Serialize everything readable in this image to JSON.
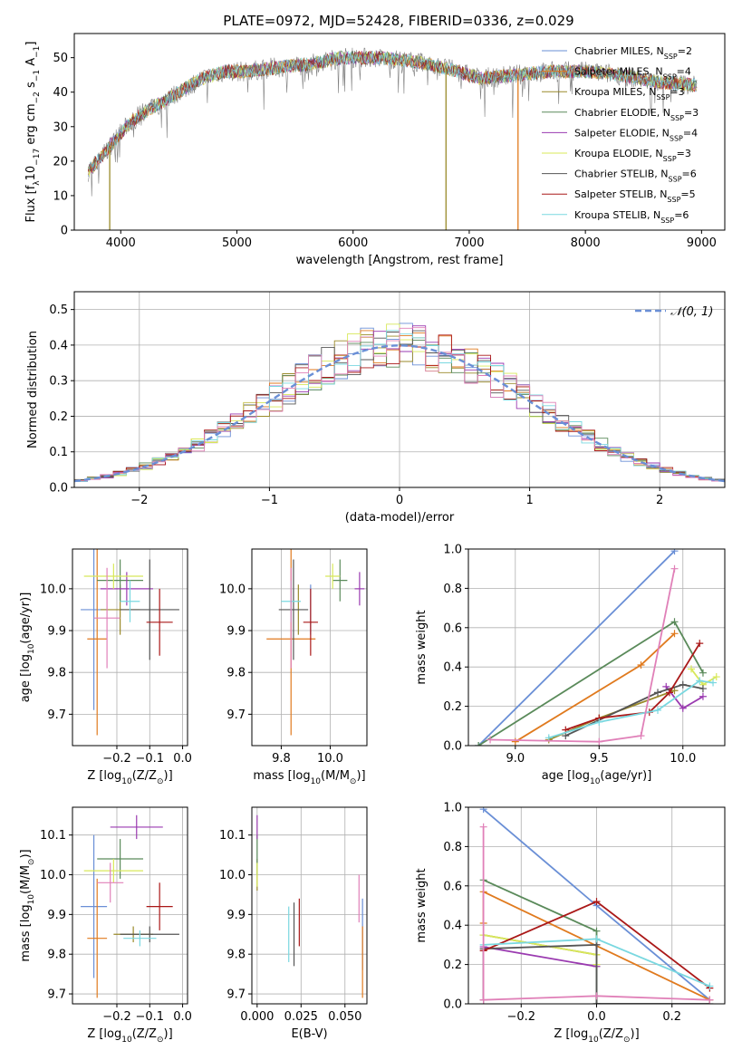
{
  "figure_title": "PLATE=0972, MJD=52428, FIBERID=0336, z=0.029",
  "colors": {
    "chab_miles": "#6a8fd6",
    "salp_miles": "#e07a1e",
    "krou_miles": "#9a8a2a",
    "chab_elodie": "#5a8a5a",
    "salp_elodie": "#9a3ab0",
    "krou_elodie": "#d8e85a",
    "chab_stelib": "#555555",
    "salp_stelib": "#aa1818",
    "krou_stelib": "#7ad8e0",
    "extra_pink": "#e080b8",
    "data": "#808080"
  },
  "legend": {
    "spectrum": [
      {
        "key": "chab_miles",
        "label": "Chabrier MILES, N",
        "sub": "SSP",
        "tail": "=2"
      },
      {
        "key": "salp_miles",
        "label": "Salpeter MILES, N",
        "sub": "SSP",
        "tail": "=4"
      },
      {
        "key": "krou_miles",
        "label": "Kroupa MILES, N",
        "sub": "SSP",
        "tail": "=3"
      },
      {
        "key": "chab_elodie",
        "label": "Chabrier ELODIE, N",
        "sub": "SSP",
        "tail": "=3"
      },
      {
        "key": "salp_elodie",
        "label": "Salpeter ELODIE, N",
        "sub": "SSP",
        "tail": "=4"
      },
      {
        "key": "krou_elodie",
        "label": "Kroupa ELODIE, N",
        "sub": "SSP",
        "tail": "=3"
      },
      {
        "key": "chab_stelib",
        "label": "Chabrier STELIB, N",
        "sub": "SSP",
        "tail": "=6"
      },
      {
        "key": "salp_stelib",
        "label": "Salpeter STELIB, N",
        "sub": "SSP",
        "tail": "=5"
      },
      {
        "key": "krou_stelib",
        "label": "Kroupa STELIB, N",
        "sub": "SSP",
        "tail": "=6"
      }
    ],
    "hist_normal": "𝒩(0, 1)"
  },
  "chart_data": [
    {
      "id": "spectrum",
      "type": "line",
      "xlabel": "wavelength [Angstrom, rest frame]",
      "ylabel_parts": [
        "Flux [f",
        "λ",
        "10",
        "−17",
        " erg cm",
        "−2",
        " s",
        "−1",
        " A",
        "−1",
        "]"
      ],
      "xlim": [
        3600,
        9200
      ],
      "ylim": [
        0,
        57
      ],
      "xticks": [
        4000,
        5000,
        6000,
        7000,
        8000,
        9000
      ],
      "yticks": [
        0,
        10,
        20,
        30,
        40,
        50
      ],
      "xrange_data": [
        3720,
        8960
      ],
      "continuum": [
        [
          3720,
          17
        ],
        [
          3850,
          22
        ],
        [
          3950,
          26
        ],
        [
          4050,
          30
        ],
        [
          4150,
          33
        ],
        [
          4300,
          36
        ],
        [
          4500,
          40
        ],
        [
          4700,
          44
        ],
        [
          4900,
          46
        ],
        [
          5100,
          46
        ],
        [
          5300,
          47
        ],
        [
          5600,
          48
        ],
        [
          5900,
          50
        ],
        [
          6200,
          50
        ],
        [
          6500,
          49
        ],
        [
          6800,
          47
        ],
        [
          7100,
          44
        ],
        [
          7400,
          45
        ],
        [
          7700,
          46
        ],
        [
          8000,
          46
        ],
        [
          8300,
          45
        ],
        [
          8600,
          43
        ],
        [
          8960,
          42
        ]
      ],
      "drops": [
        {
          "x": 3905,
          "key": "krou_miles"
        },
        {
          "x": 6800,
          "key": "krou_miles"
        },
        {
          "x": 7420,
          "key": "salp_miles"
        }
      ]
    },
    {
      "id": "residual_hist",
      "type": "step-histogram",
      "xlabel": "(data-model)/error",
      "ylabel": "Normed distribution",
      "xlim": [
        -2.5,
        2.5
      ],
      "ylim": [
        0,
        0.55
      ],
      "xticks": [
        -2,
        -1,
        0,
        1,
        2
      ],
      "xtick_labels": [
        "−2",
        "−1",
        "0",
        "1",
        "2"
      ],
      "yticks": [
        0,
        0.1,
        0.2,
        0.3,
        0.4,
        0.5
      ],
      "ytick_labels": [
        "0.0",
        "0.1",
        "0.2",
        "0.3",
        "0.4",
        "0.5"
      ],
      "bin_width": 0.1,
      "normal_sigma": 1
    },
    {
      "id": "z_age",
      "type": "errorbar",
      "xlabel_parts": [
        "Z [log",
        "10",
        "(Z/Z",
        "⊙",
        ")]"
      ],
      "ylabel_parts": [
        "age  [log",
        "10",
        "(age/yr)]"
      ],
      "xlim": [
        -0.335,
        0.015
      ],
      "ylim": [
        9.625,
        10.095
      ],
      "xticks": [
        -0.2,
        -0.1,
        0.0
      ],
      "xtick_labels": [
        "−0.2",
        "−0.1",
        "0.0"
      ],
      "yticks": [
        9.7,
        9.8,
        9.9,
        10.0
      ],
      "ytick_labels": [
        "9.7",
        "9.8",
        "9.9",
        "10.0"
      ],
      "points": [
        {
          "key": "chab_miles",
          "x": -0.27,
          "y": 9.95,
          "xerr": 0.04,
          "yerr": 0.24
        },
        {
          "key": "salp_miles",
          "x": -0.26,
          "y": 9.88,
          "xerr": 0.03,
          "yerr": 0.23
        },
        {
          "key": "krou_miles",
          "x": -0.19,
          "y": 9.95,
          "xerr": 0.06,
          "yerr": 0.06
        },
        {
          "key": "chab_elodie",
          "x": -0.19,
          "y": 10.02,
          "xerr": 0.07,
          "yerr": 0.05
        },
        {
          "key": "salp_elodie",
          "x": -0.17,
          "y": 10.0,
          "xerr": 0.08,
          "yerr": 0.04
        },
        {
          "key": "krou_elodie",
          "x": -0.21,
          "y": 10.03,
          "xerr": 0.09,
          "yerr": 0.03
        },
        {
          "key": "chab_stelib",
          "x": -0.1,
          "y": 9.95,
          "xerr": 0.09,
          "yerr": 0.12
        },
        {
          "key": "salp_stelib",
          "x": -0.07,
          "y": 9.92,
          "xerr": 0.04,
          "yerr": 0.08
        },
        {
          "key": "krou_stelib",
          "x": -0.16,
          "y": 9.97,
          "xerr": 0.03,
          "yerr": 0.05
        },
        {
          "key": "extra_pink",
          "x": -0.23,
          "y": 9.93,
          "xerr": 0.04,
          "yerr": 0.12
        }
      ]
    },
    {
      "id": "mass_age",
      "type": "errorbar",
      "xlabel_parts": [
        "mass [log",
        "10",
        "(M/M",
        "⊙",
        ")]"
      ],
      "xlim": [
        9.68,
        10.15
      ],
      "ylim": [
        9.625,
        10.095
      ],
      "xticks": [
        9.8,
        10.0
      ],
      "xtick_labels": [
        "9.8",
        "10.0"
      ],
      "yticks": [
        9.7,
        9.8,
        9.9,
        10.0
      ],
      "ytick_labels": [
        "9.7",
        "9.8",
        "9.9",
        "10.0"
      ],
      "points": [
        {
          "key": "chab_miles",
          "x": 9.92,
          "y": 9.95,
          "xerr": 0.0,
          "yerr": 0.06
        },
        {
          "key": "salp_miles",
          "x": 9.84,
          "y": 9.88,
          "xerr": 0.1,
          "yerr": 0.23
        },
        {
          "key": "krou_miles",
          "x": 9.87,
          "y": 9.95,
          "xerr": 0.0,
          "yerr": 0.06
        },
        {
          "key": "chab_elodie",
          "x": 10.04,
          "y": 10.02,
          "xerr": 0.03,
          "yerr": 0.05
        },
        {
          "key": "salp_elodie",
          "x": 10.12,
          "y": 10.0,
          "xerr": 0.02,
          "yerr": 0.04
        },
        {
          "key": "krou_elodie",
          "x": 10.01,
          "y": 10.03,
          "xerr": 0.03,
          "yerr": 0.03
        },
        {
          "key": "chab_stelib",
          "x": 9.85,
          "y": 9.95,
          "xerr": 0.06,
          "yerr": 0.12
        },
        {
          "key": "salp_stelib",
          "x": 9.92,
          "y": 9.92,
          "xerr": 0.03,
          "yerr": 0.08
        },
        {
          "key": "krou_stelib",
          "x": 9.84,
          "y": 9.97,
          "xerr": 0.04,
          "yerr": 0.05
        },
        {
          "key": "extra_pink",
          "x": 9.84,
          "y": 9.93,
          "xerr": 0.0,
          "yerr": 0.12
        }
      ]
    },
    {
      "id": "age_weight",
      "type": "line",
      "xlabel_parts": [
        "age  [log",
        "10",
        "(age/yr)]"
      ],
      "ylabel": "mass weight",
      "xlim": [
        8.72,
        10.25
      ],
      "ylim": [
        0,
        1.0
      ],
      "xticks": [
        9.0,
        9.5,
        10.0
      ],
      "xtick_labels": [
        "9.0",
        "9.5",
        "10.0"
      ],
      "yticks": [
        0,
        0.2,
        0.4,
        0.6,
        0.8,
        1.0
      ],
      "ytick_labels": [
        "0.0",
        "0.2",
        "0.4",
        "0.6",
        "0.8",
        "1.0"
      ],
      "series": [
        {
          "key": "chab_miles",
          "x": [
            8.78,
            9.95
          ],
          "y": [
            0.0,
            0.99
          ]
        },
        {
          "key": "salp_miles",
          "x": [
            9.0,
            9.75,
            9.95
          ],
          "y": [
            0.02,
            0.41,
            0.57
          ]
        },
        {
          "key": "krou_miles",
          "x": [
            9.2,
            9.5,
            9.95
          ],
          "y": [
            0.03,
            0.14,
            0.28
          ]
        },
        {
          "key": "chab_elodie",
          "x": [
            8.78,
            9.95,
            10.12
          ],
          "y": [
            0.0,
            0.63,
            0.37
          ]
        },
        {
          "key": "salp_elodie",
          "x": [
            9.9,
            10.0,
            10.12
          ],
          "y": [
            0.3,
            0.19,
            0.25
          ]
        },
        {
          "key": "krou_elodie",
          "x": [
            10.05,
            10.12,
            10.2
          ],
          "y": [
            0.39,
            0.31,
            0.35
          ]
        },
        {
          "key": "chab_stelib",
          "x": [
            9.3,
            9.85,
            10.0,
            10.12
          ],
          "y": [
            0.05,
            0.27,
            0.31,
            0.29
          ]
        },
        {
          "key": "salp_stelib",
          "x": [
            9.3,
            9.5,
            9.8,
            9.92,
            10.1
          ],
          "y": [
            0.08,
            0.14,
            0.17,
            0.27,
            0.52
          ]
        },
        {
          "key": "krou_stelib",
          "x": [
            9.2,
            9.5,
            9.85,
            10.1,
            10.18
          ],
          "y": [
            0.04,
            0.12,
            0.18,
            0.33,
            0.32
          ]
        },
        {
          "key": "extra_pink",
          "x": [
            8.85,
            9.5,
            9.75,
            9.95
          ],
          "y": [
            0.03,
            0.02,
            0.05,
            0.9
          ]
        }
      ]
    },
    {
      "id": "z_mass",
      "type": "errorbar",
      "xlabel_parts": [
        "Z [log",
        "10",
        "(Z/Z",
        "⊙",
        ")]"
      ],
      "ylabel_parts": [
        "mass [log",
        "10",
        "(M/M",
        "⊙",
        ")]"
      ],
      "xlim": [
        -0.335,
        0.015
      ],
      "ylim": [
        9.675,
        10.17
      ],
      "xticks": [
        -0.2,
        -0.1,
        0.0
      ],
      "xtick_labels": [
        "−0.2",
        "−0.1",
        "0.0"
      ],
      "yticks": [
        9.7,
        9.8,
        9.9,
        10.0,
        10.1
      ],
      "ytick_labels": [
        "9.7",
        "9.8",
        "9.9",
        "10.0",
        "10.1"
      ],
      "points": [
        {
          "key": "chab_miles",
          "x": -0.27,
          "y": 9.92,
          "xerr": 0.04,
          "yerr": 0.18
        },
        {
          "key": "salp_miles",
          "x": -0.26,
          "y": 9.84,
          "xerr": 0.03,
          "yerr": 0.15
        },
        {
          "key": "krou_miles",
          "x": -0.15,
          "y": 9.85,
          "xerr": 0.06,
          "yerr": 0.02
        },
        {
          "key": "chab_elodie",
          "x": -0.19,
          "y": 10.04,
          "xerr": 0.07,
          "yerr": 0.05
        },
        {
          "key": "salp_elodie",
          "x": -0.14,
          "y": 10.12,
          "xerr": 0.08,
          "yerr": 0.03
        },
        {
          "key": "krou_elodie",
          "x": -0.21,
          "y": 10.01,
          "xerr": 0.09,
          "yerr": 0.03
        },
        {
          "key": "chab_stelib",
          "x": -0.1,
          "y": 9.85,
          "xerr": 0.09,
          "yerr": 0.02
        },
        {
          "key": "salp_stelib",
          "x": -0.07,
          "y": 9.92,
          "xerr": 0.04,
          "yerr": 0.06
        },
        {
          "key": "krou_stelib",
          "x": -0.13,
          "y": 9.84,
          "xerr": 0.05,
          "yerr": 0.02
        },
        {
          "key": "extra_pink",
          "x": -0.22,
          "y": 9.98,
          "xerr": 0.04,
          "yerr": 0.05
        }
      ]
    },
    {
      "id": "ebv_mass",
      "type": "errorbar",
      "xlabel": "E(B-V)",
      "xlim": [
        -0.003,
        0.0625
      ],
      "ylim": [
        9.675,
        10.17
      ],
      "xticks": [
        0.0,
        0.025,
        0.05
      ],
      "xtick_labels": [
        "0.000",
        "0.025",
        "0.050"
      ],
      "yticks": [
        9.7,
        9.8,
        9.9,
        10.0,
        10.1
      ],
      "ytick_labels": [
        "9.7",
        "9.8",
        "9.9",
        "10.0",
        "10.1"
      ],
      "points": [
        {
          "key": "chab_miles",
          "x": 0.06,
          "y": 9.85,
          "xerr": 0.0,
          "yerr": 0.09
        },
        {
          "key": "salp_miles",
          "x": 0.06,
          "y": 9.78,
          "xerr": 0.0,
          "yerr": 0.09
        },
        {
          "key": "krou_miles",
          "x": 0.0,
          "y": 10.0,
          "xerr": 0.0,
          "yerr": 0.04
        },
        {
          "key": "chab_elodie",
          "x": 0.0,
          "y": 10.05,
          "xerr": 0.0,
          "yerr": 0.05
        },
        {
          "key": "salp_elodie",
          "x": 0.0,
          "y": 10.12,
          "xerr": 0.0,
          "yerr": 0.03
        },
        {
          "key": "krou_elodie",
          "x": 0.0,
          "y": 10.0,
          "xerr": 0.0,
          "yerr": 0.03
        },
        {
          "key": "chab_stelib",
          "x": 0.021,
          "y": 9.85,
          "xerr": 0.0,
          "yerr": 0.08
        },
        {
          "key": "salp_stelib",
          "x": 0.024,
          "y": 9.88,
          "xerr": 0.0,
          "yerr": 0.06
        },
        {
          "key": "krou_stelib",
          "x": 0.018,
          "y": 9.85,
          "xerr": 0.0,
          "yerr": 0.07
        },
        {
          "key": "extra_pink",
          "x": 0.058,
          "y": 9.94,
          "xerr": 0.0,
          "yerr": 0.06
        }
      ]
    },
    {
      "id": "z_weight",
      "type": "line",
      "xlabel_parts": [
        "Z [log",
        "10",
        "(Z/Z",
        "⊙",
        ")]"
      ],
      "ylabel": "mass weight",
      "xlim": [
        -0.34,
        0.34
      ],
      "ylim": [
        0,
        1.0
      ],
      "xticks": [
        -0.2,
        0.0,
        0.2
      ],
      "xtick_labels": [
        "−0.2",
        "0.0",
        "0.2"
      ],
      "yticks": [
        0,
        0.2,
        0.4,
        0.6,
        0.8,
        1.0
      ],
      "ytick_labels": [
        "0.0",
        "0.2",
        "0.4",
        "0.6",
        "0.8",
        "1.0"
      ],
      "series": [
        {
          "key": "chab_miles",
          "x": [
            -0.3,
            0.0,
            0.3
          ],
          "y": [
            0.99,
            0.5,
            0.02
          ]
        },
        {
          "key": "salp_miles",
          "x": [
            -0.3,
            -0.3,
            0.3
          ],
          "y": [
            0.41,
            0.57,
            0.02
          ]
        },
        {
          "key": "krou_miles",
          "x": [
            -0.3,
            0.0,
            0.0
          ],
          "y": [
            0.35,
            0.25,
            0.3
          ]
        },
        {
          "key": "chab_elodie",
          "x": [
            -0.3,
            0.0,
            0.0
          ],
          "y": [
            0.63,
            0.37,
            0.0
          ]
        },
        {
          "key": "salp_elodie",
          "x": [
            -0.3,
            0.0,
            0.0
          ],
          "y": [
            0.29,
            0.19,
            0.3
          ]
        },
        {
          "key": "krou_elodie",
          "x": [
            -0.3,
            0.0,
            0.0
          ],
          "y": [
            0.35,
            0.25,
            0.2
          ]
        },
        {
          "key": "chab_stelib",
          "x": [
            -0.3,
            -0.3,
            0.0,
            0.0,
            0.3
          ],
          "y": [
            0.02,
            0.28,
            0.3,
            0.0,
            0.0
          ]
        },
        {
          "key": "salp_stelib",
          "x": [
            -0.3,
            0.0,
            0.3
          ],
          "y": [
            0.27,
            0.52,
            0.08
          ]
        },
        {
          "key": "krou_stelib",
          "x": [
            -0.3,
            0.0,
            0.3
          ],
          "y": [
            0.3,
            0.33,
            0.09
          ]
        },
        {
          "key": "extra_pink",
          "x": [
            -0.3,
            -0.3,
            0.0,
            0.3
          ],
          "y": [
            0.9,
            0.02,
            0.04,
            0.02
          ]
        }
      ]
    }
  ]
}
